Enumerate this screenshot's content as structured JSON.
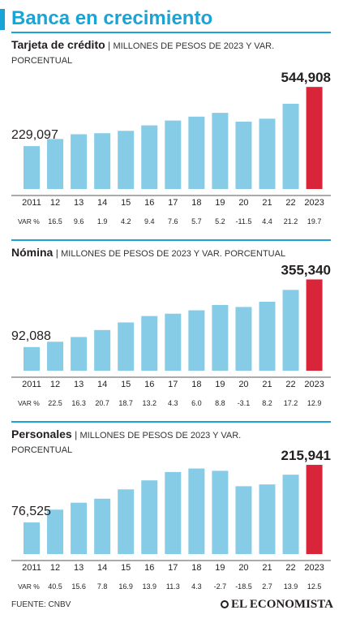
{
  "title": "Banca en crecimiento",
  "source": "FUENTE: CNBV",
  "logo": "EL ECONOMISTA",
  "colors": {
    "bar": "#87cce6",
    "highlight": "#d9253a",
    "accent": "#1aa3d6"
  },
  "chart_data": [
    {
      "type": "bar",
      "title": "Tarjeta de crédito",
      "subtitle": "MILLONES DE PESOS DE 2023 Y VAR. PORCENTUAL",
      "categories": [
        "2011",
        "12",
        "13",
        "14",
        "15",
        "16",
        "17",
        "18",
        "19",
        "20",
        "21",
        "22",
        "2023"
      ],
      "values": [
        229097,
        266900,
        292500,
        298000,
        310500,
        339700,
        365500,
        386400,
        406500,
        359700,
        375500,
        455100,
        544908
      ],
      "var_label": "VAR %",
      "var": [
        "16.5",
        "9.6",
        "1.9",
        "4.2",
        "9.4",
        "7.6",
        "5.7",
        "5.2",
        "-11.5",
        "4.4",
        "21.2",
        "19.7"
      ],
      "labels": {
        "first": "229,097",
        "last": "544,908"
      },
      "ylim": [
        0,
        550000
      ]
    },
    {
      "type": "bar",
      "title": "Nómina",
      "subtitle": "MILLONES DE PESOS DE 2023 Y VAR. PORCENTUAL",
      "categories": [
        "2011",
        "12",
        "13",
        "14",
        "15",
        "16",
        "17",
        "18",
        "19",
        "20",
        "21",
        "22",
        "2023"
      ],
      "values": [
        92088,
        112800,
        131200,
        158400,
        188000,
        212800,
        222000,
        235300,
        256000,
        248100,
        268400,
        314600,
        355340
      ],
      "var_label": "VAR %",
      "var": [
        "22.5",
        "16.3",
        "20.7",
        "18.7",
        "13.2",
        "4.3",
        "6.0",
        "8.8",
        "-3.1",
        "8.2",
        "17.2",
        "12.9"
      ],
      "labels": {
        "first": "92,088",
        "last": "355,340"
      },
      "ylim": [
        0,
        360000
      ]
    },
    {
      "type": "bar",
      "title": "Personales",
      "subtitle": "MILLONES DE PESOS DE 2023 Y VAR. PORCENTUAL",
      "categories": [
        "2011",
        "12",
        "13",
        "14",
        "15",
        "16",
        "17",
        "18",
        "19",
        "20",
        "21",
        "22",
        "2023"
      ],
      "values": [
        76525,
        107500,
        124300,
        134000,
        156600,
        178400,
        198600,
        207100,
        201500,
        164200,
        168600,
        192100,
        215941
      ],
      "var_label": "VAR %",
      "var": [
        "40.5",
        "15.6",
        "7.8",
        "16.9",
        "13.9",
        "11.3",
        "4.3",
        "-2.7",
        "-18.5",
        "2.7",
        "13.9",
        "12.5"
      ],
      "labels": {
        "first": "76,525",
        "last": "215,941"
      },
      "ylim": [
        0,
        218000
      ]
    }
  ]
}
